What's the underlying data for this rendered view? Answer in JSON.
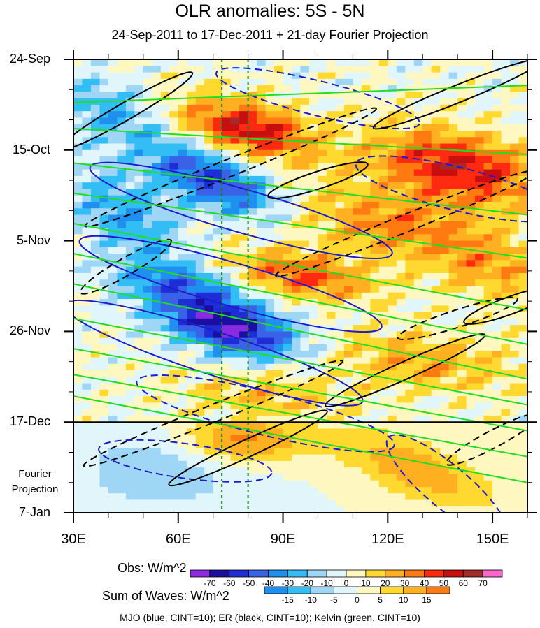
{
  "chart_data": {
    "type": "heatmap",
    "title": "OLR anomalies: 5S - 5N",
    "subtitle": "24-Sep-2011 to 17-Dec-2011 + 21-day Fourier Projection",
    "x_axis": {
      "range": [
        30,
        160
      ],
      "unit": "degrees longitude",
      "ticks": [
        30,
        60,
        90,
        120,
        150
      ],
      "tick_labels": [
        "30E",
        "60E",
        "90E",
        "120E",
        "150E"
      ]
    },
    "y_axis": {
      "range_days": [
        0,
        105
      ],
      "ticks_days": [
        0,
        21,
        42,
        63,
        84,
        105
      ],
      "tick_labels": [
        "24-Sep",
        "15-Oct",
        "5-Nov",
        "26-Nov",
        "17-Dec",
        "7-Jan"
      ],
      "reversed": true
    },
    "projection_start_label": "17-Dec",
    "projection_label": [
      "Fourier",
      "Projection"
    ],
    "reference_longitudes_dashed": [
      72.5,
      80
    ],
    "obs_colorbar": {
      "label": "Obs: W/m^2",
      "levels": [
        -70,
        -60,
        -50,
        -40,
        -30,
        -20,
        -10,
        0,
        10,
        20,
        30,
        40,
        50,
        60,
        70
      ],
      "colors": [
        "#8a2be2",
        "#1a0fa0",
        "#1e2dd6",
        "#3a62e6",
        "#1f8ff0",
        "#33bdf5",
        "#9fd6f5",
        "#e0f6fb",
        "#fff7c0",
        "#ffd830",
        "#ffb020",
        "#ff7a10",
        "#ff2a10",
        "#c80f0f",
        "#a52a2a",
        "#ff66cc"
      ]
    },
    "waves_colorbar": {
      "label": "Sum of Waves: W/m^2",
      "levels": [
        -15,
        -10,
        -5,
        0,
        5,
        10,
        15
      ],
      "colors": [
        "#1f8ff0",
        "#33bdf5",
        "#9fd6f5",
        "#e0f6fb",
        "#fff7c0",
        "#ffd830",
        "#ffb020",
        "#ff7a10"
      ]
    },
    "contour_series": [
      {
        "name": "MJO",
        "color": "#1c1ccc",
        "cint": 10
      },
      {
        "name": "ER",
        "color": "#000000",
        "cint": 10
      },
      {
        "name": "Kelvin",
        "color": "#22dd22",
        "cint": 10
      }
    ],
    "footer": "MJO (blue, CINT=10); ER (black, CINT=10); Kelvin (green, CINT=10)"
  }
}
